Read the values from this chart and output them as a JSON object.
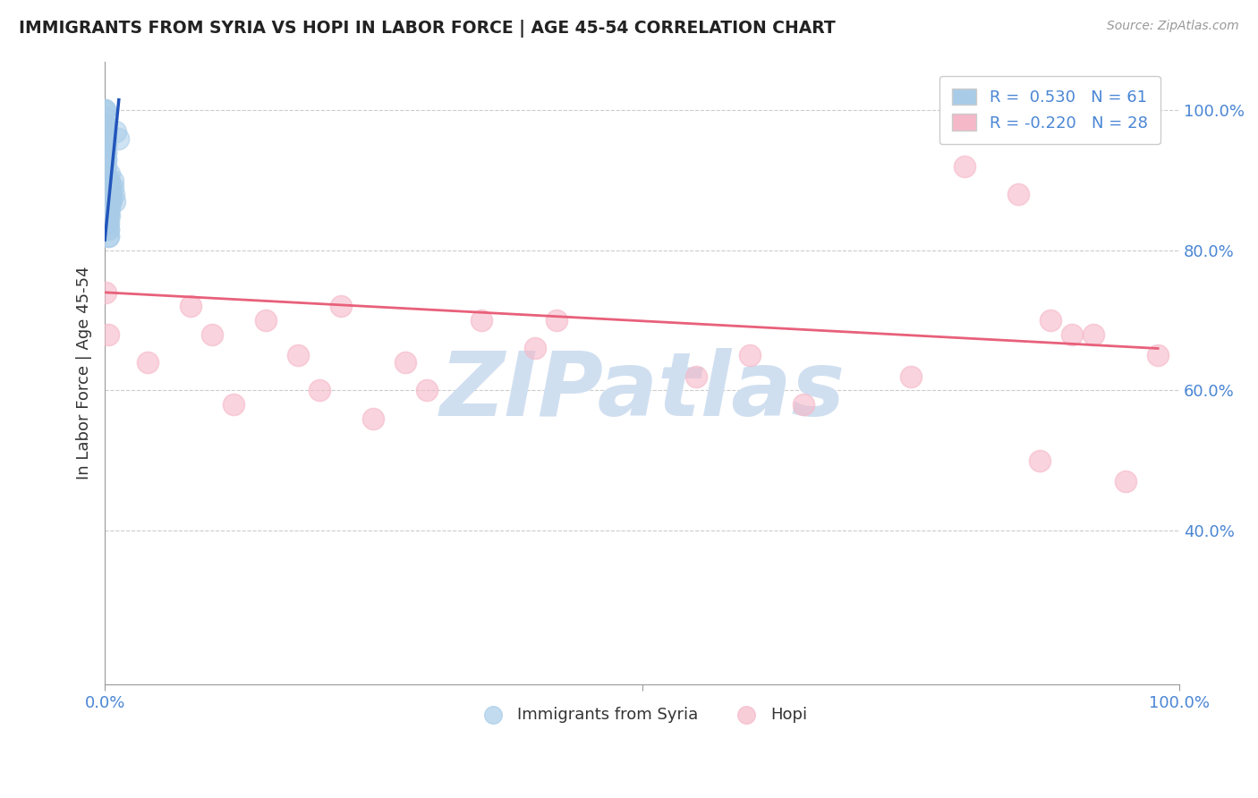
{
  "title": "IMMIGRANTS FROM SYRIA VS HOPI IN LABOR FORCE | AGE 45-54 CORRELATION CHART",
  "source": "Source: ZipAtlas.com",
  "ylabel": "In Labor Force | Age 45-54",
  "legend_xlabel_syria": "Immigrants from Syria",
  "legend_xlabel_hopi": "Hopi",
  "blue_R": 0.53,
  "blue_N": 61,
  "pink_R": -0.22,
  "pink_N": 28,
  "blue_color": "#a8cce8",
  "pink_color": "#f5b8c8",
  "blue_line_color": "#2255bb",
  "pink_line_color": "#e8607a",
  "watermark_text": "ZIPatlas",
  "watermark_color": "#d0dff0",
  "background_color": "#ffffff",
  "xlim": [
    0.0,
    1.0
  ],
  "ylim": [
    0.18,
    1.07
  ],
  "yticks": [
    0.4,
    0.6,
    0.8,
    1.0
  ],
  "ytick_labels": [
    "40.0%",
    "60.0%",
    "80.0%",
    "100.0%"
  ],
  "blue_x": [
    0.0,
    0.0,
    0.0,
    0.0,
    0.0,
    0.0,
    0.0,
    0.0,
    0.0,
    0.0,
    0.001,
    0.001,
    0.001,
    0.001,
    0.001,
    0.001,
    0.001,
    0.001,
    0.001,
    0.001,
    0.001,
    0.002,
    0.002,
    0.002,
    0.002,
    0.002,
    0.002,
    0.002,
    0.002,
    0.002,
    0.002,
    0.002,
    0.002,
    0.002,
    0.002,
    0.003,
    0.003,
    0.003,
    0.003,
    0.003,
    0.003,
    0.003,
    0.003,
    0.004,
    0.004,
    0.004,
    0.004,
    0.004,
    0.004,
    0.004,
    0.005,
    0.005,
    0.005,
    0.006,
    0.006,
    0.007,
    0.007,
    0.008,
    0.009,
    0.01,
    0.012
  ],
  "blue_y": [
    1.0,
    1.0,
    1.0,
    0.99,
    0.98,
    0.98,
    0.98,
    0.97,
    0.97,
    0.96,
    0.96,
    0.96,
    0.95,
    0.95,
    0.94,
    0.94,
    0.93,
    0.93,
    0.92,
    0.91,
    0.9,
    0.9,
    0.9,
    0.89,
    0.89,
    0.88,
    0.88,
    0.87,
    0.87,
    0.86,
    0.86,
    0.85,
    0.85,
    0.84,
    0.84,
    0.83,
    0.83,
    0.82,
    0.82,
    0.87,
    0.86,
    0.85,
    0.84,
    0.91,
    0.9,
    0.89,
    0.88,
    0.87,
    0.86,
    0.85,
    0.89,
    0.88,
    0.87,
    0.88,
    0.87,
    0.9,
    0.89,
    0.88,
    0.87,
    0.97,
    0.96
  ],
  "pink_x": [
    0.001,
    0.003,
    0.04,
    0.08,
    0.1,
    0.12,
    0.15,
    0.18,
    0.2,
    0.22,
    0.25,
    0.28,
    0.3,
    0.35,
    0.4,
    0.42,
    0.55,
    0.6,
    0.65,
    0.75,
    0.8,
    0.85,
    0.87,
    0.88,
    0.9,
    0.92,
    0.95,
    0.98
  ],
  "pink_y": [
    0.74,
    0.68,
    0.64,
    0.72,
    0.68,
    0.58,
    0.7,
    0.65,
    0.6,
    0.72,
    0.56,
    0.64,
    0.6,
    0.7,
    0.66,
    0.7,
    0.62,
    0.65,
    0.58,
    0.62,
    0.92,
    0.88,
    0.5,
    0.7,
    0.68,
    0.68,
    0.47,
    0.65
  ],
  "pink_trend_x0": 0.0,
  "pink_trend_x1": 0.98,
  "pink_trend_y0": 0.74,
  "pink_trend_y1": 0.66
}
